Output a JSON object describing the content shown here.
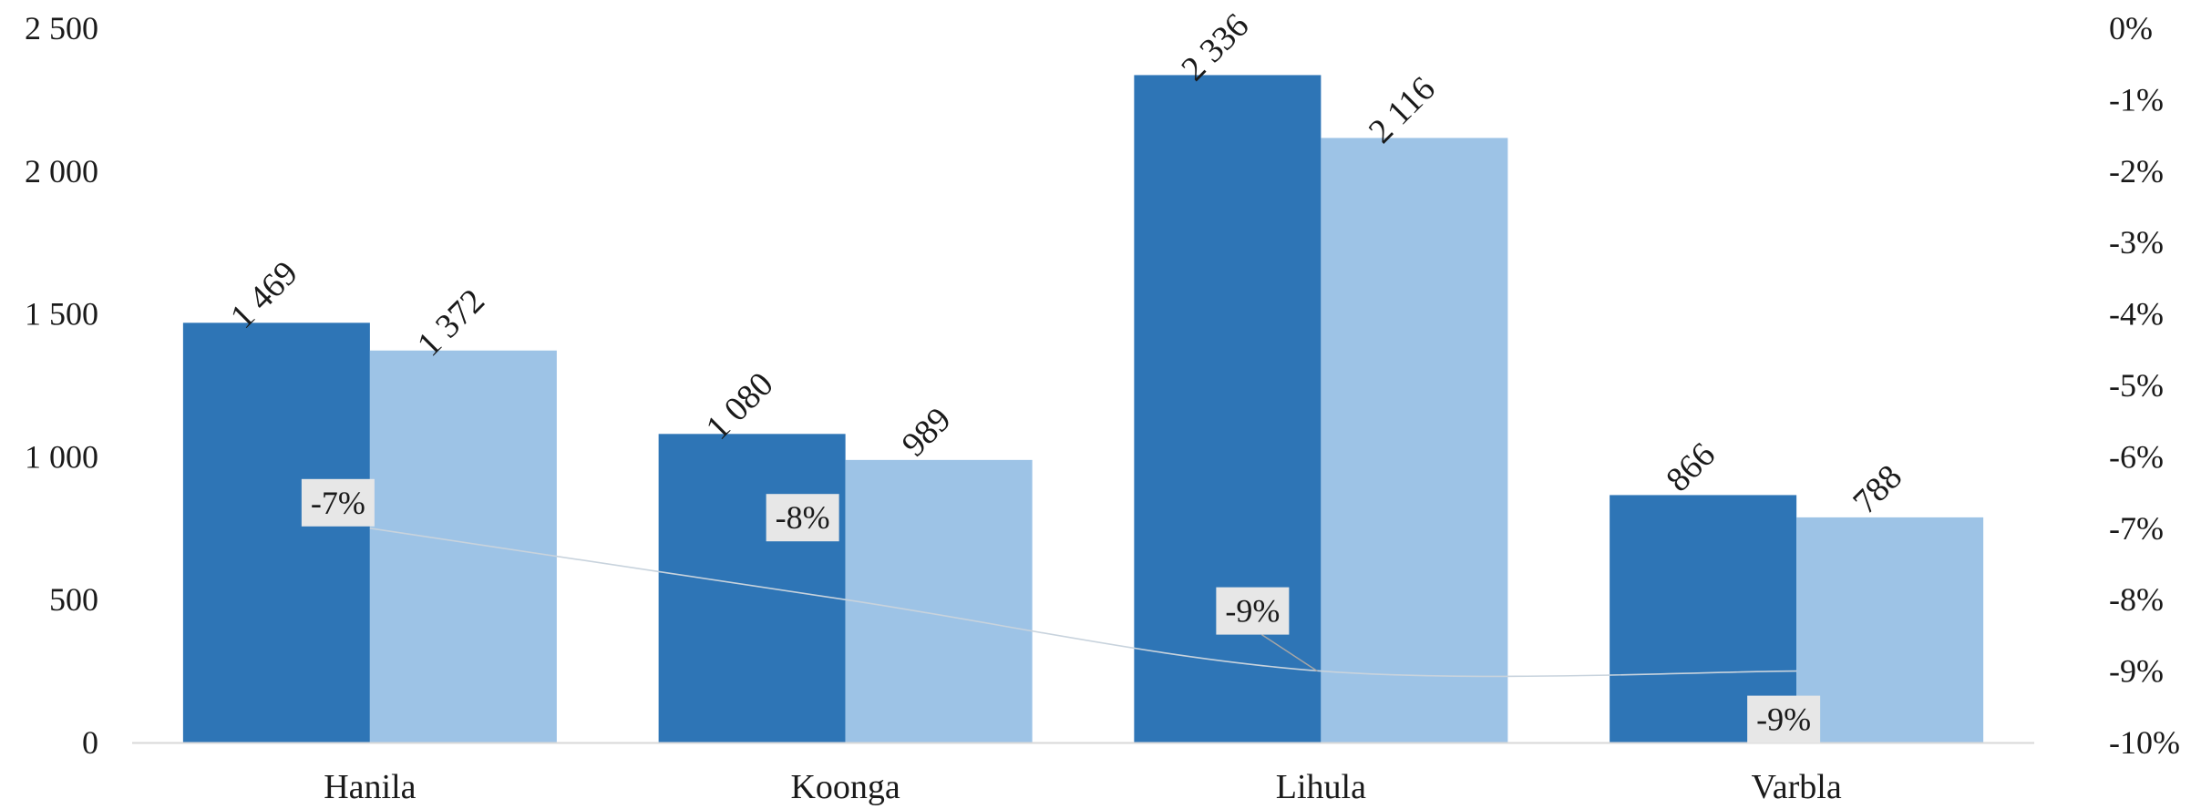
{
  "chart_data": {
    "type": "bar",
    "categories": [
      "Hanila",
      "Koonga",
      "Lihula",
      "Varbla"
    ],
    "series": [
      {
        "values": [
          1469,
          1080,
          2336,
          866
        ],
        "labels": [
          "1 469",
          "1 080",
          "2 336",
          "866"
        ],
        "color": "#2e75b6"
      },
      {
        "values": [
          1372,
          989,
          2116,
          788
        ],
        "labels": [
          "1 372",
          "989",
          "2 116",
          "788"
        ],
        "color": "#9dc3e6"
      }
    ],
    "change": {
      "type": "line",
      "axis": "secondary",
      "values": [
        -7,
        -8,
        -9,
        -9
      ],
      "labels": [
        "-7%",
        "-8%",
        "-9%",
        "-9%"
      ],
      "color": "#c8d3dd"
    },
    "y_axis": {
      "min": 0,
      "max": 2500,
      "step": 500,
      "tick_labels": [
        "0",
        "500",
        "1 000",
        "1 500",
        "2 000",
        "2 500"
      ]
    },
    "y2_axis": {
      "min": -10,
      "max": 0,
      "step": 1,
      "tick_labels": [
        "-10%",
        "-9%",
        "-8%",
        "-7%",
        "-6%",
        "-5%",
        "-4%",
        "-3%",
        "-2%",
        "-1%",
        "0%"
      ]
    },
    "grid": false,
    "legend": "none",
    "title": "",
    "xlabel": "",
    "ylabel": ""
  }
}
